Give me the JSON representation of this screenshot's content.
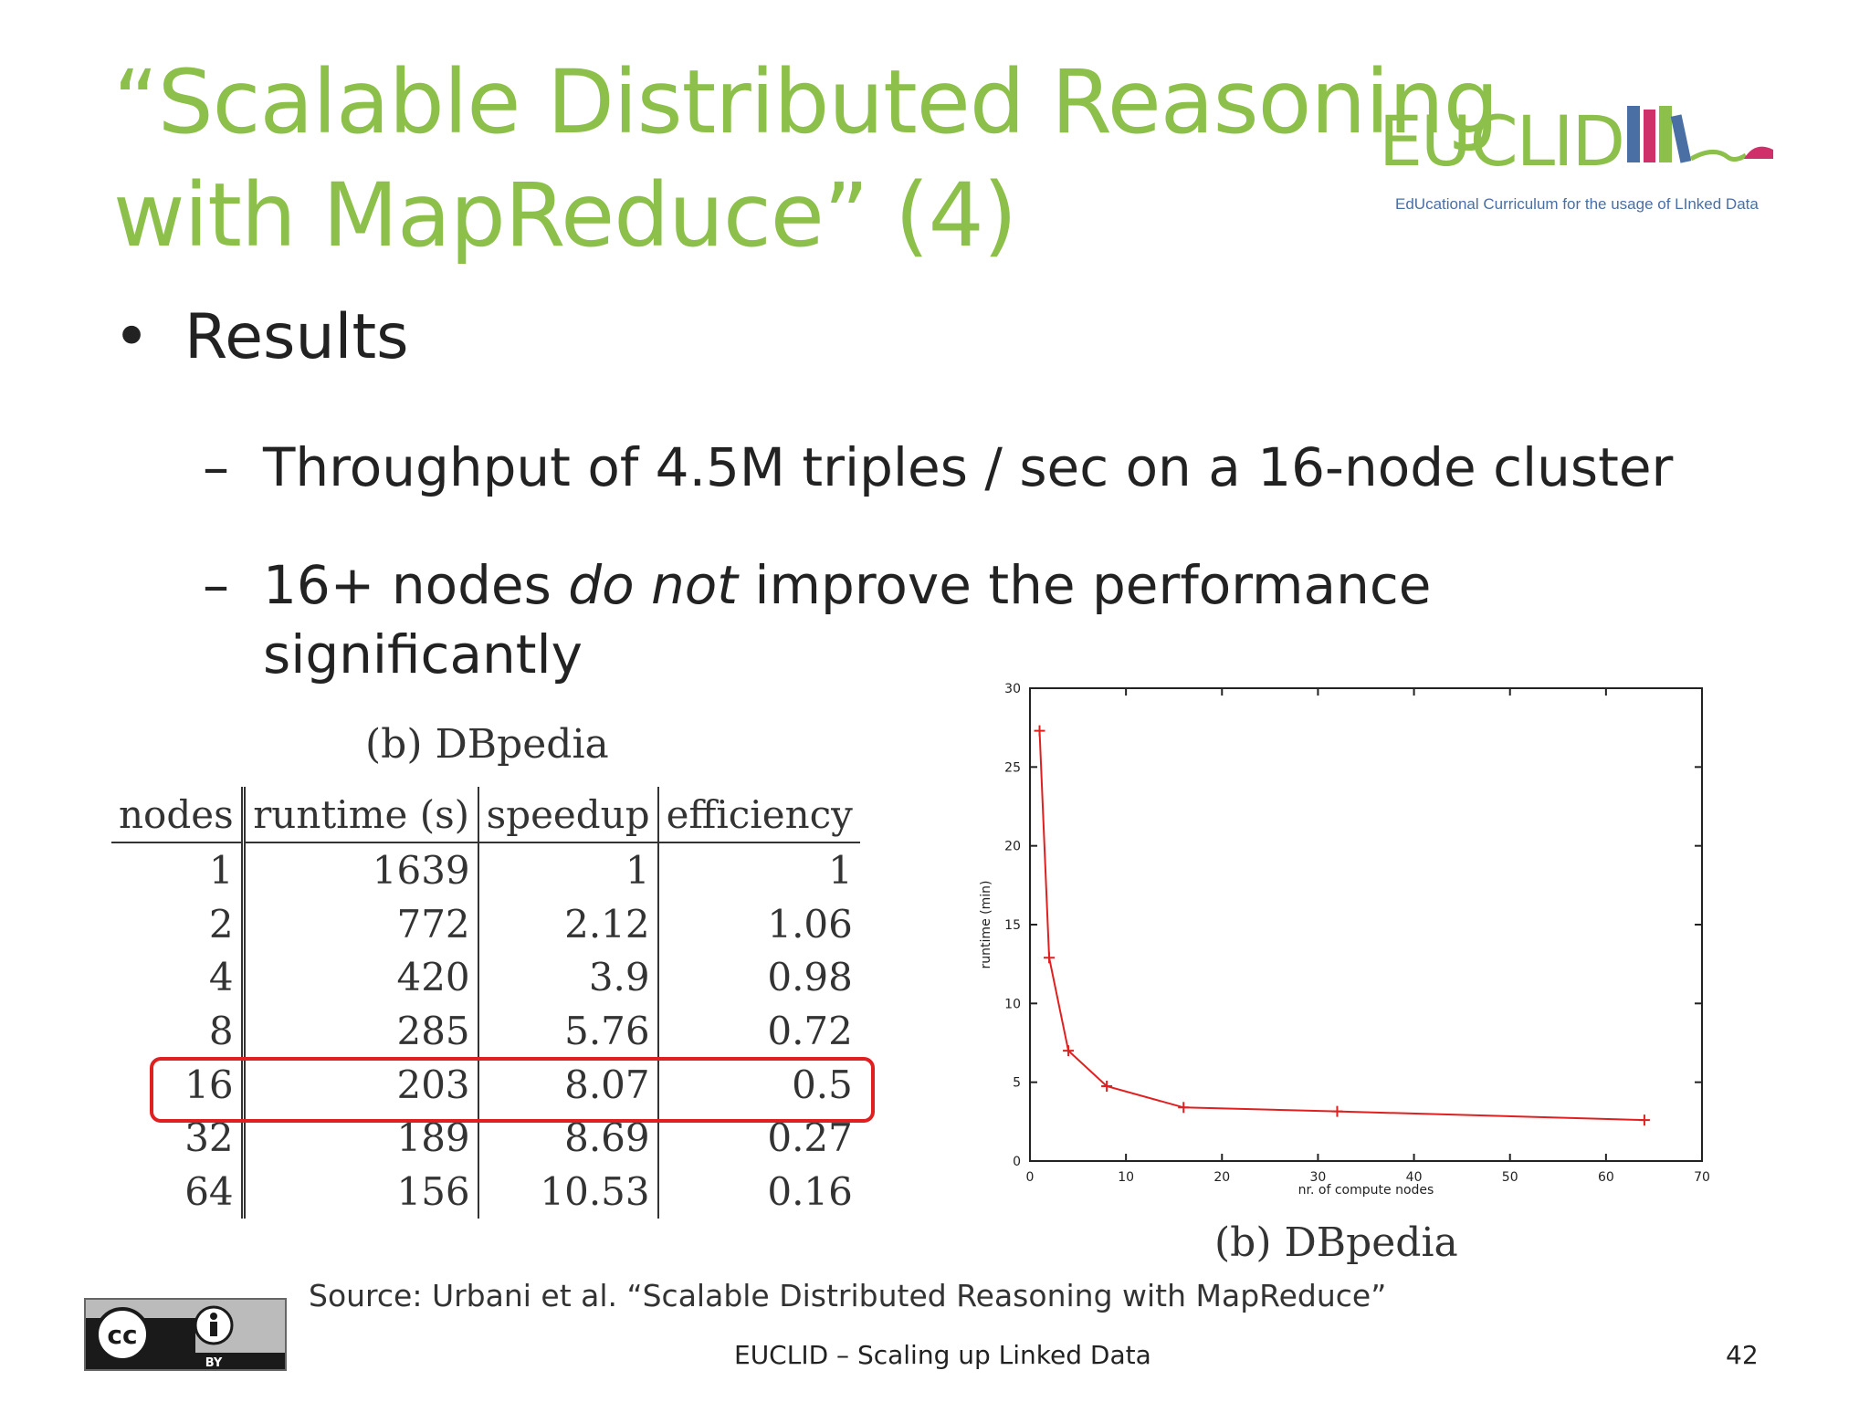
{
  "title": {
    "line1": "“Scalable Distributed Reasoning",
    "line2": "with MapReduce” (4)"
  },
  "logo": {
    "word": "EUCLID",
    "subtitle": "EdUcational Curriculum for the usage of LInked Data",
    "colors": {
      "green": "#8cc04a",
      "blue": "#4a6fa5",
      "magenta": "#d0306a"
    }
  },
  "bullets": {
    "main": "Results",
    "sub1": "Throughput of 4.5M triples / sec on a 16-node cluster",
    "sub2_pre": "16+ nodes ",
    "sub2_em": "do not",
    "sub2_post": " improve the performance",
    "sub2_line2": "significantly"
  },
  "table": {
    "caption": "(b) DBpedia",
    "headers": [
      "nodes",
      "runtime (s)",
      "speedup",
      "efficiency"
    ],
    "rows": [
      [
        "1",
        "1639",
        "1",
        "1"
      ],
      [
        "2",
        "772",
        "2.12",
        "1.06"
      ],
      [
        "4",
        "420",
        "3.9",
        "0.98"
      ],
      [
        "8",
        "285",
        "5.76",
        "0.72"
      ],
      [
        "16",
        "203",
        "8.07",
        "0.5"
      ],
      [
        "32",
        "189",
        "8.69",
        "0.27"
      ],
      [
        "64",
        "156",
        "10.53",
        "0.16"
      ]
    ],
    "highlighted_row": "16",
    "highlight_color": "#e02020"
  },
  "chart_data": {
    "type": "line",
    "caption": "(b) DBpedia",
    "xlabel": "nr. of compute nodes",
    "ylabel": "runtime (min)",
    "xlim": [
      0,
      70
    ],
    "ylim": [
      0,
      30
    ],
    "xticks": [
      0,
      10,
      20,
      30,
      40,
      50,
      60,
      70
    ],
    "yticks": [
      0,
      5,
      10,
      15,
      20,
      25,
      30
    ],
    "grid": false,
    "color": "#e02020",
    "x": [
      1,
      2,
      4,
      8,
      16,
      32,
      64
    ],
    "y": [
      27.3,
      12.9,
      7.0,
      4.75,
      3.4,
      3.15,
      2.6
    ]
  },
  "source": "Source: Urbani et al.  “Scalable Distributed Reasoning with MapReduce”",
  "footer": "EUCLID – Scaling up Linked Data",
  "page_number": "42",
  "license": {
    "cc": "cc",
    "by": "BY"
  }
}
